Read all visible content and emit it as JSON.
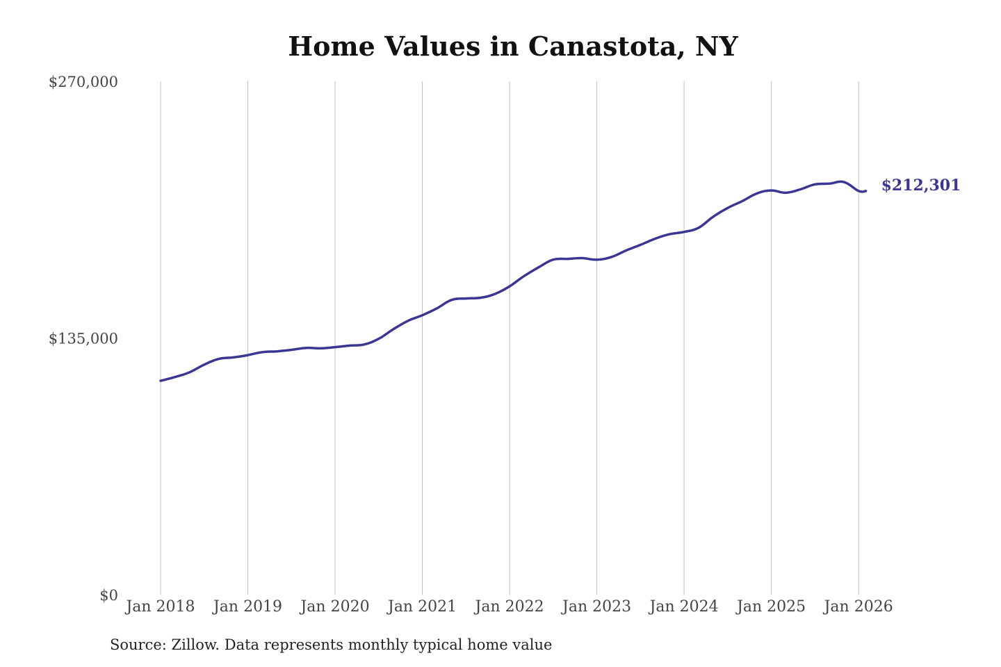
{
  "colors": {
    "line": "#3b3593",
    "grid": "#bfbfbf",
    "text": "#444444",
    "title": "#111111"
  },
  "chart_data": {
    "type": "line",
    "title": "Home Values in Canastota, NY",
    "xlabel": "",
    "ylabel": "",
    "ylim": [
      0,
      270000
    ],
    "yticks": [
      0,
      135000,
      270000
    ],
    "ytick_labels": [
      "$0",
      "$135,000",
      "$270,000"
    ],
    "xlim": [
      "2018-01",
      "2026-02"
    ],
    "xticks": [
      "2018-01",
      "2019-01",
      "2020-01",
      "2021-01",
      "2022-01",
      "2023-01",
      "2024-01",
      "2025-01",
      "2026-01"
    ],
    "xtick_labels": [
      "Jan 2018",
      "Jan 2019",
      "Jan 2020",
      "Jan 2021",
      "Jan 2022",
      "Jan 2023",
      "Jan 2024",
      "Jan 2025",
      "Jan 2026"
    ],
    "grid": {
      "vertical": true,
      "horizontal": false
    },
    "legend": "none",
    "end_label": "$212,301",
    "series": [
      {
        "x": [
          "2018-01",
          "2018-03",
          "2018-05",
          "2018-07",
          "2018-09",
          "2018-11",
          "2019-01",
          "2019-03",
          "2019-05",
          "2019-07",
          "2019-09",
          "2019-11",
          "2020-01",
          "2020-03",
          "2020-05",
          "2020-07",
          "2020-09",
          "2020-11",
          "2021-01",
          "2021-03",
          "2021-05",
          "2021-07",
          "2021-09",
          "2021-11",
          "2022-01",
          "2022-03",
          "2022-05",
          "2022-07",
          "2022-09",
          "2022-11",
          "2023-01",
          "2023-03",
          "2023-05",
          "2023-07",
          "2023-09",
          "2023-11",
          "2024-01",
          "2024-03",
          "2024-05",
          "2024-07",
          "2024-09",
          "2024-11",
          "2025-01",
          "2025-03",
          "2025-05",
          "2025-07",
          "2025-09",
          "2025-11",
          "2026-01",
          "2026-02"
        ],
        "values": [
          112500,
          114500,
          117000,
          121000,
          124000,
          124800,
          126000,
          127600,
          128000,
          128800,
          129800,
          129600,
          130200,
          131000,
          131600,
          134600,
          139600,
          144000,
          147000,
          150600,
          155000,
          155800,
          156200,
          158200,
          162200,
          167600,
          172200,
          176200,
          176600,
          177000,
          176200,
          177600,
          181000,
          184000,
          187200,
          189600,
          190800,
          193000,
          198800,
          203400,
          207000,
          211000,
          212600,
          211400,
          213200,
          215800,
          216200,
          217000,
          212301,
          212301
        ]
      }
    ]
  },
  "source_note": "Source: Zillow. Data represents monthly typical home value"
}
